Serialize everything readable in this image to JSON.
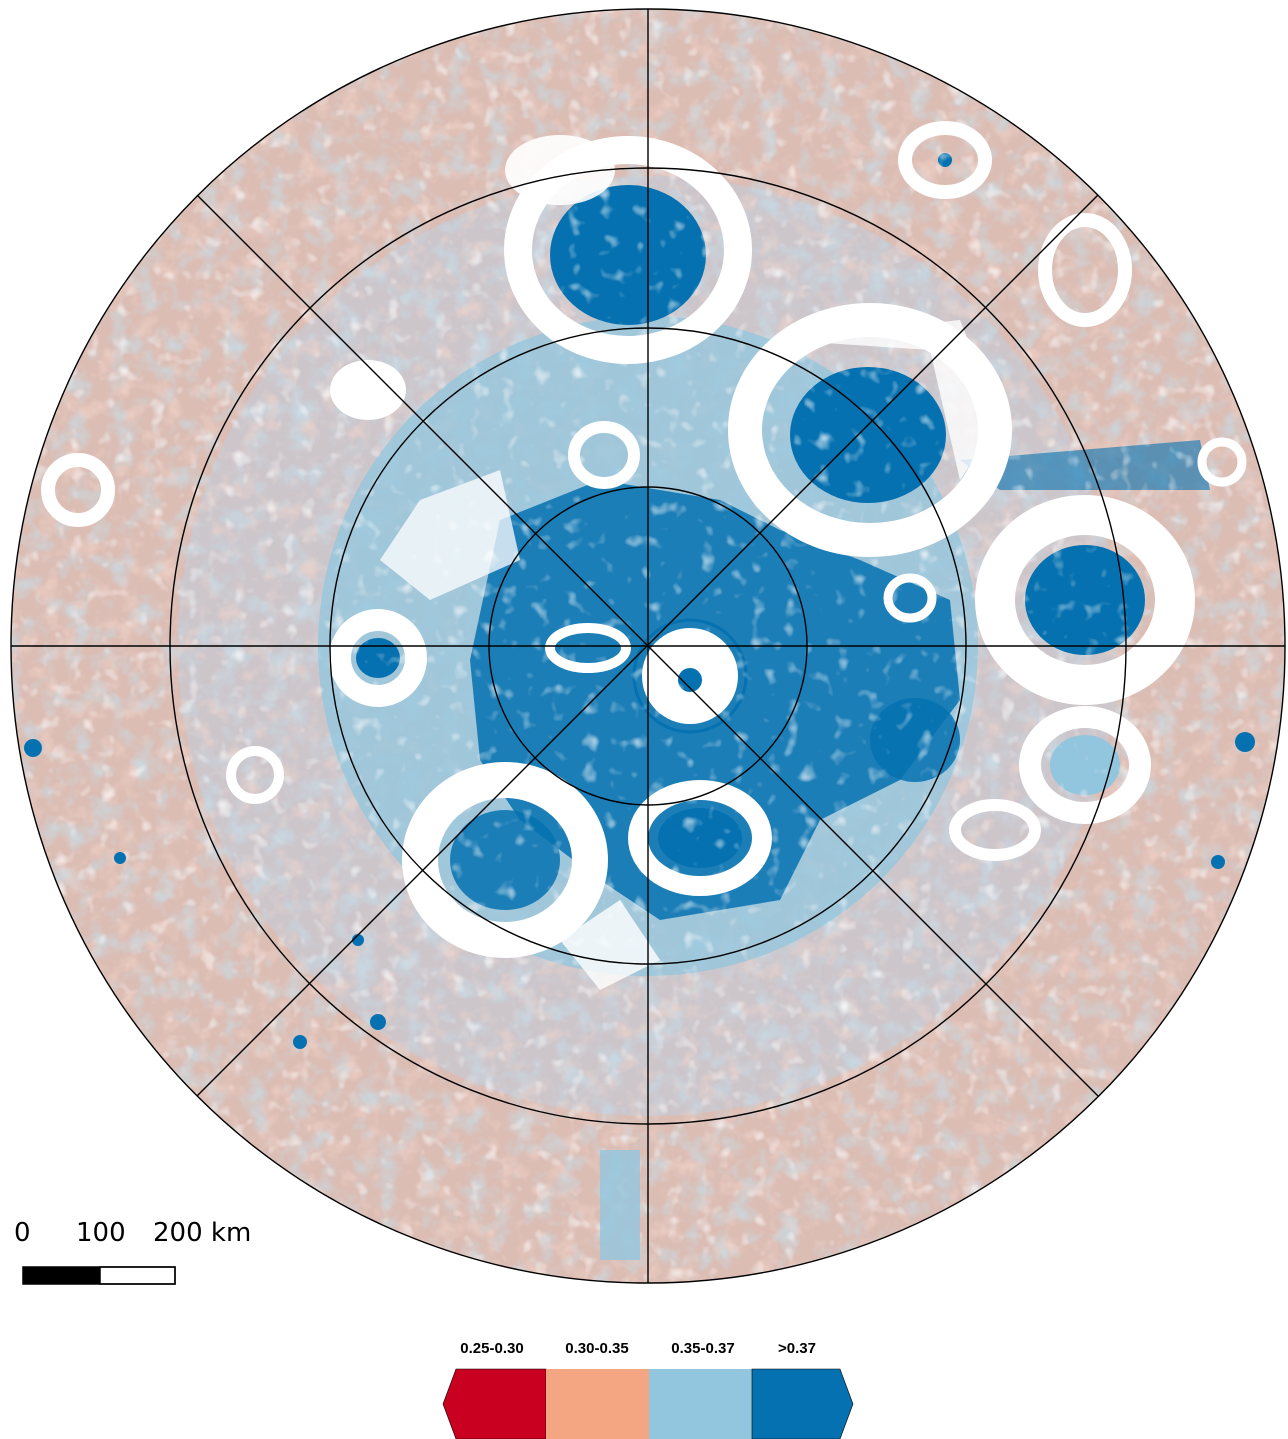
{
  "colors": {
    "background": "#ffffff",
    "graticule": "#000000",
    "no_data": "#ffffff",
    "gray_base": "#c8c8c8"
  },
  "scale_bar": {
    "ticks": [
      "0",
      "100",
      "200 km"
    ]
  },
  "legend": {
    "classes": [
      {
        "label": "0.25-0.30",
        "color": "#ca0020"
      },
      {
        "label": "0.30-0.35",
        "color": "#f4a582"
      },
      {
        "label": "0.35-0.37",
        "color": "#92c5de"
      },
      {
        "label": ">0.37",
        "color": "#0571b0"
      }
    ]
  }
}
